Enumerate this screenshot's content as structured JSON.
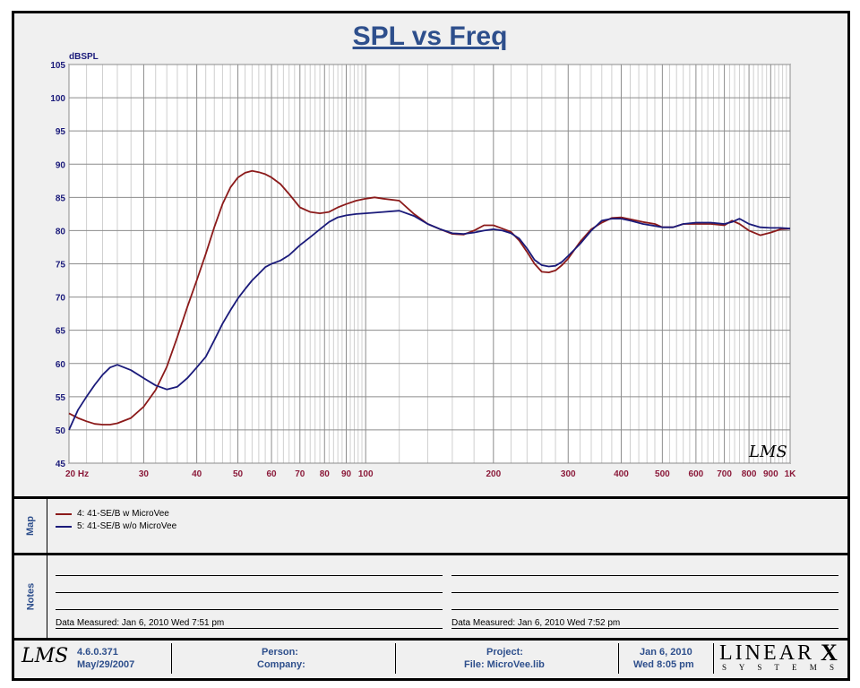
{
  "chart_data": {
    "type": "line",
    "title": "SPL vs Freq",
    "ylabel": "dBSPL",
    "xlabel": "",
    "xscale": "log",
    "xlim": [
      20,
      1000
    ],
    "ylim": [
      45,
      105
    ],
    "grid": true,
    "x_ticks": [
      20,
      30,
      40,
      50,
      60,
      70,
      80,
      90,
      100,
      200,
      300,
      400,
      500,
      600,
      700,
      800,
      900,
      1000
    ],
    "x_tick_labels": [
      "20  Hz",
      "30",
      "40",
      "50",
      "60",
      "70",
      "80",
      "90",
      "100",
      "200",
      "300",
      "400",
      "500",
      "600",
      "700",
      "800",
      "900",
      "1K"
    ],
    "y_ticks": [
      45,
      50,
      55,
      60,
      65,
      70,
      75,
      80,
      85,
      90,
      95,
      100,
      105
    ],
    "series": [
      {
        "name": "4: 41-SE/B w MicroVee",
        "color": "#8b1a1a",
        "x": [
          20,
          21,
          22,
          23,
          24,
          25,
          26,
          28,
          30,
          32,
          34,
          36,
          38,
          40,
          42,
          44,
          46,
          48,
          50,
          52,
          54,
          56,
          58,
          60,
          63,
          66,
          70,
          74,
          78,
          82,
          86,
          90,
          95,
          100,
          105,
          110,
          120,
          130,
          140,
          150,
          160,
          170,
          180,
          190,
          200,
          210,
          220,
          230,
          240,
          250,
          260,
          270,
          280,
          290,
          300,
          320,
          340,
          360,
          380,
          400,
          420,
          450,
          480,
          500,
          530,
          560,
          600,
          650,
          700,
          730,
          760,
          800,
          850,
          900,
          950,
          1000
        ],
        "y": [
          52.5,
          51.8,
          51.3,
          50.9,
          50.8,
          50.8,
          51.0,
          51.8,
          53.5,
          56.0,
          59.5,
          64.0,
          68.5,
          72.5,
          76.5,
          80.5,
          84.0,
          86.5,
          88.0,
          88.7,
          89.0,
          88.8,
          88.5,
          88.0,
          87.0,
          85.5,
          83.5,
          82.8,
          82.6,
          82.8,
          83.5,
          84.0,
          84.5,
          84.8,
          85.0,
          84.8,
          84.5,
          82.5,
          81.0,
          80.2,
          79.5,
          79.4,
          80.0,
          80.8,
          80.8,
          80.3,
          79.8,
          78.5,
          76.8,
          75.0,
          73.8,
          73.7,
          74.0,
          74.8,
          75.8,
          78.3,
          80.2,
          81.2,
          81.9,
          82.0,
          81.7,
          81.3,
          81.0,
          80.5,
          80.5,
          81.0,
          81.0,
          81.0,
          80.8,
          81.5,
          81.0,
          80.0,
          79.3,
          79.7,
          80.2,
          80.3
        ]
      },
      {
        "name": "5: 41-SE/B w/o MicroVee",
        "color": "#1a1a7a",
        "x": [
          20,
          21,
          22,
          23,
          24,
          25,
          26,
          28,
          30,
          32,
          34,
          36,
          38,
          40,
          42,
          44,
          46,
          48,
          50,
          52,
          54,
          56,
          58,
          60,
          63,
          66,
          70,
          74,
          78,
          82,
          86,
          90,
          95,
          100,
          105,
          110,
          120,
          130,
          140,
          150,
          160,
          170,
          180,
          190,
          200,
          210,
          220,
          230,
          240,
          250,
          260,
          270,
          280,
          290,
          300,
          320,
          340,
          360,
          380,
          400,
          420,
          450,
          480,
          500,
          530,
          560,
          600,
          650,
          700,
          730,
          760,
          800,
          850,
          900,
          950,
          1000
        ],
        "y": [
          50.0,
          53.0,
          55.0,
          56.8,
          58.3,
          59.4,
          59.8,
          59.0,
          57.8,
          56.7,
          56.1,
          56.5,
          57.8,
          59.4,
          61.0,
          63.5,
          66.0,
          68.0,
          69.8,
          71.2,
          72.5,
          73.5,
          74.5,
          75.0,
          75.5,
          76.3,
          77.8,
          79.0,
          80.2,
          81.3,
          82.0,
          82.3,
          82.5,
          82.6,
          82.7,
          82.8,
          83.0,
          82.2,
          81.0,
          80.2,
          79.6,
          79.5,
          79.7,
          80.0,
          80.2,
          80.0,
          79.6,
          78.8,
          77.3,
          75.6,
          74.8,
          74.6,
          74.7,
          75.3,
          76.2,
          78.0,
          80.0,
          81.5,
          81.8,
          81.8,
          81.5,
          81.0,
          80.7,
          80.5,
          80.5,
          81.0,
          81.2,
          81.2,
          81.0,
          81.3,
          81.8,
          81.0,
          80.5,
          80.4,
          80.4,
          80.3
        ]
      }
    ]
  },
  "map": {
    "label": "Map",
    "legend": [
      {
        "name": "4: 41-SE/B w MicroVee",
        "color": "#8b1a1a"
      },
      {
        "name": "5: 41-SE/B w/o MicroVee",
        "color": "#1a1a7a"
      }
    ]
  },
  "notes": {
    "label": "Notes",
    "left_measured": "Data Measured:  Jan  6, 2010  Wed  7:51 pm",
    "right_measured": "Data Measured:  Jan  6, 2010  Wed  7:52 pm"
  },
  "footer": {
    "logo": "LMS",
    "version": "4.6.0.371",
    "version_date": "May/29/2007",
    "person_label": "Person:",
    "company_label": "Company:",
    "project_label": "Project:",
    "file_label": "File: MicroVee.lib",
    "date": "Jan  6, 2010",
    "time": "Wed  8:05 pm",
    "brand_top": "LINEAR",
    "brand_x": "X",
    "brand_bottom": "S Y S T E M S"
  },
  "watermark": "LMS"
}
